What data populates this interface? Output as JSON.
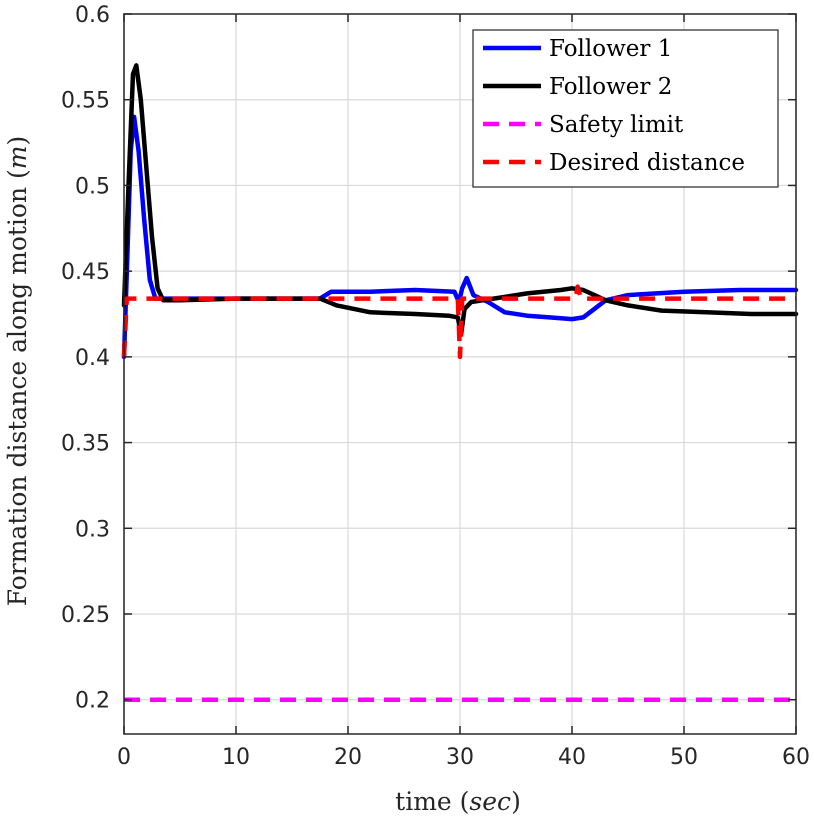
{
  "chart_data": {
    "type": "line",
    "title": "",
    "xlabel": "time",
    "xlabel_unit": "sec",
    "ylabel": "Formation distance along motion",
    "ylabel_unit": "m",
    "xlim": [
      0,
      60
    ],
    "ylim": [
      0.18,
      0.6
    ],
    "xticks": [
      0,
      10,
      20,
      30,
      40,
      50,
      60
    ],
    "yticks": [
      0.2,
      0.25,
      0.3,
      0.35,
      0.4,
      0.45,
      0.5,
      0.55,
      0.6
    ],
    "ytick_labels": [
      "0.2",
      "0.25",
      "0.3",
      "0.35",
      "0.4",
      "0.45",
      "0.5",
      "0.55",
      "0.6"
    ],
    "grid": true,
    "legend_position": "top-right",
    "series": [
      {
        "name": "Follower 1",
        "color": "#0000ff",
        "style": "solid",
        "points": [
          [
            0,
            0.4
          ],
          [
            0.3,
            0.46
          ],
          [
            0.6,
            0.52
          ],
          [
            0.9,
            0.54
          ],
          [
            1.3,
            0.52
          ],
          [
            1.8,
            0.48
          ],
          [
            2.3,
            0.445
          ],
          [
            2.8,
            0.434
          ],
          [
            4,
            0.434
          ],
          [
            6,
            0.434
          ],
          [
            10,
            0.434
          ],
          [
            14,
            0.434
          ],
          [
            17.5,
            0.434
          ],
          [
            18.5,
            0.438
          ],
          [
            22,
            0.438
          ],
          [
            26,
            0.439
          ],
          [
            29.5,
            0.438
          ],
          [
            29.9,
            0.432
          ],
          [
            30.2,
            0.44
          ],
          [
            30.6,
            0.446
          ],
          [
            31.2,
            0.436
          ],
          [
            32.5,
            0.432
          ],
          [
            34,
            0.426
          ],
          [
            36,
            0.424
          ],
          [
            38,
            0.423
          ],
          [
            40,
            0.422
          ],
          [
            41,
            0.423
          ],
          [
            42,
            0.428
          ],
          [
            43,
            0.433
          ],
          [
            45,
            0.436
          ],
          [
            50,
            0.438
          ],
          [
            55,
            0.439
          ],
          [
            60,
            0.439
          ]
        ]
      },
      {
        "name": "Follower 2",
        "color": "#000000",
        "style": "solid",
        "points": [
          [
            0,
            0.43
          ],
          [
            0.4,
            0.5
          ],
          [
            0.8,
            0.565
          ],
          [
            1.1,
            0.57
          ],
          [
            1.5,
            0.55
          ],
          [
            2.0,
            0.51
          ],
          [
            2.5,
            0.47
          ],
          [
            3.0,
            0.44
          ],
          [
            3.5,
            0.433
          ],
          [
            5,
            0.433
          ],
          [
            10,
            0.434
          ],
          [
            15,
            0.434
          ],
          [
            17.5,
            0.434
          ],
          [
            19,
            0.43
          ],
          [
            22,
            0.426
          ],
          [
            26,
            0.425
          ],
          [
            29,
            0.424
          ],
          [
            29.8,
            0.423
          ],
          [
            30.1,
            0.413
          ],
          [
            30.4,
            0.428
          ],
          [
            31,
            0.432
          ],
          [
            33,
            0.434
          ],
          [
            36,
            0.437
          ],
          [
            39,
            0.439
          ],
          [
            40,
            0.44
          ],
          [
            41,
            0.439
          ],
          [
            42,
            0.436
          ],
          [
            43,
            0.433
          ],
          [
            45,
            0.43
          ],
          [
            48,
            0.427
          ],
          [
            52,
            0.426
          ],
          [
            56,
            0.425
          ],
          [
            60,
            0.425
          ]
        ]
      },
      {
        "name": "Safety limit",
        "color": "#ff00ff",
        "style": "dashed",
        "points": [
          [
            0,
            0.2
          ],
          [
            60,
            0.2
          ]
        ]
      },
      {
        "name": "Desired distance",
        "color": "#ff0000",
        "style": "dashed",
        "points": [
          [
            0,
            0.4
          ],
          [
            0.25,
            0.434
          ],
          [
            29.8,
            0.434
          ],
          [
            30.0,
            0.4
          ],
          [
            30.2,
            0.434
          ],
          [
            40.3,
            0.434
          ],
          [
            40.5,
            0.441
          ],
          [
            40.8,
            0.434
          ],
          [
            60,
            0.434
          ]
        ]
      }
    ]
  }
}
